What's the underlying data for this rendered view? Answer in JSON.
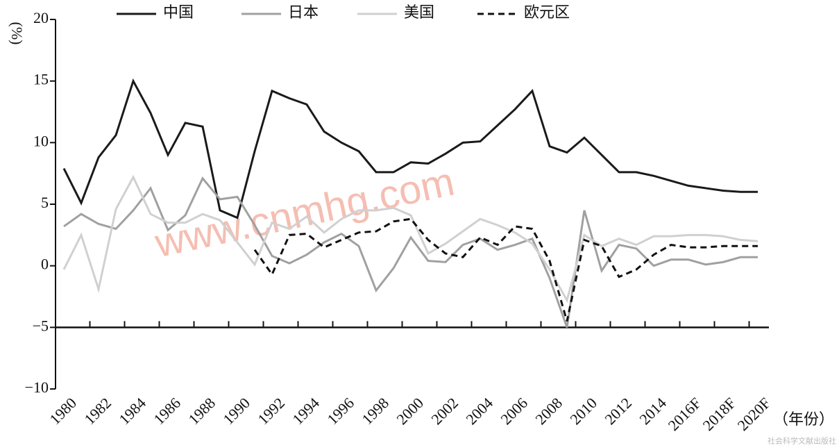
{
  "chart_data": {
    "type": "line",
    "ylabel": "(%)",
    "xlabel": "（年份）",
    "watermark": "www.cnmhg.com",
    "source": "社会科学文献出版社",
    "categories": [
      "1980",
      null,
      "1982",
      null,
      "1984",
      null,
      "1986",
      null,
      "1988",
      null,
      "1990",
      null,
      "1992",
      null,
      "1994",
      null,
      "1996",
      null,
      "1998",
      null,
      "2000",
      null,
      "2002",
      null,
      "2004",
      null,
      "2006",
      null,
      "2008",
      null,
      "2010",
      null,
      "2012",
      null,
      "2014",
      null,
      "2016F",
      null,
      "2018F",
      null,
      "2020F"
    ],
    "series": [
      {
        "name": "中国",
        "color": "#1a1a1a",
        "dash": false,
        "values": [
          7.9,
          5.1,
          8.8,
          10.6,
          15.0,
          12.4,
          9.0,
          11.6,
          11.3,
          4.5,
          3.9,
          9.3,
          14.2,
          13.6,
          13.1,
          10.9,
          10.0,
          9.3,
          7.6,
          7.6,
          8.4,
          8.3,
          9.1,
          10.0,
          10.1,
          11.4,
          12.7,
          14.2,
          9.7,
          9.2,
          10.4,
          9.0,
          7.6,
          7.6,
          7.3,
          6.9,
          6.5,
          6.3,
          6.1,
          6.0,
          6.0
        ]
      },
      {
        "name": "日本",
        "color": "#a0a0a0",
        "dash": false,
        "values": [
          3.2,
          4.2,
          3.4,
          3.0,
          4.5,
          6.3,
          2.9,
          4.1,
          7.1,
          5.4,
          5.6,
          3.3,
          0.8,
          0.2,
          0.9,
          1.9,
          2.6,
          1.6,
          -2.0,
          -0.2,
          2.3,
          0.4,
          0.3,
          1.7,
          2.2,
          1.3,
          1.7,
          2.2,
          -1.0,
          -5.0,
          4.5,
          -0.4,
          1.7,
          1.4,
          0.0,
          0.5,
          0.5,
          0.1,
          0.3,
          0.7,
          0.7
        ]
      },
      {
        "name": "美国",
        "color": "#d0d0d0",
        "dash": false,
        "values": [
          -0.3,
          2.5,
          -1.9,
          4.6,
          7.2,
          4.2,
          3.5,
          3.5,
          4.2,
          3.7,
          1.9,
          0.1,
          3.5,
          3.0,
          4.0,
          2.7,
          3.8,
          4.5,
          4.5,
          4.7,
          4.1,
          1.0,
          1.8,
          2.8,
          3.8,
          3.3,
          2.7,
          1.8,
          -0.3,
          -2.8,
          2.5,
          1.6,
          2.2,
          1.7,
          2.4,
          2.4,
          2.5,
          2.5,
          2.4,
          2.1,
          2.0
        ]
      },
      {
        "name": "欧元区",
        "color": "#111111",
        "dash": true,
        "values": [
          null,
          null,
          null,
          null,
          null,
          null,
          null,
          null,
          null,
          null,
          null,
          1.3,
          -0.7,
          2.5,
          2.6,
          1.5,
          2.1,
          2.7,
          2.8,
          3.6,
          3.8,
          2.1,
          1.0,
          0.7,
          2.3,
          1.7,
          3.2,
          3.0,
          0.4,
          -4.5,
          2.1,
          1.6,
          -0.9,
          -0.3,
          0.9,
          1.7,
          1.5,
          1.5,
          1.6,
          1.6,
          1.6
        ]
      }
    ],
    "ylim": [
      -10,
      20
    ],
    "yticks": [
      {
        "value": -10,
        "label": "−10"
      },
      {
        "value": -5,
        "label": "−5"
      },
      0,
      5,
      10,
      15,
      20
    ],
    "x_axis_at": -5
  }
}
